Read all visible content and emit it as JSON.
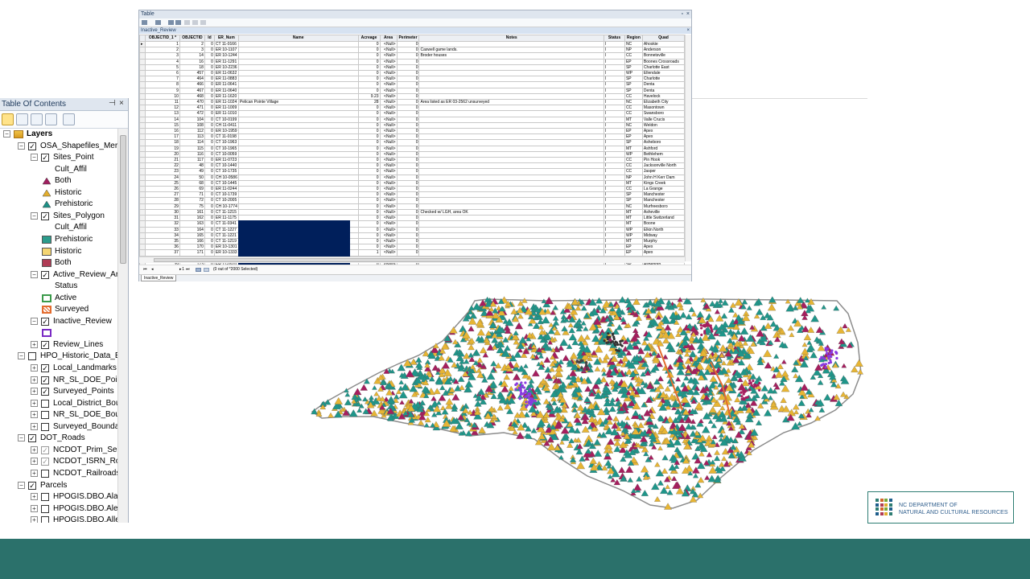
{
  "toc": {
    "title": "Table Of Contents",
    "pin_glyph": "⊣",
    "close_glyph": "×",
    "items": [
      {
        "label": "Layers",
        "kind": "root",
        "level": 0,
        "expanded": true,
        "checkbox": null
      },
      {
        "label": "OSA_Shapefiles_Mercator",
        "kind": "group",
        "level": 1,
        "expanded": true,
        "checkbox": "checked"
      },
      {
        "label": "Sites_Point",
        "kind": "layer",
        "level": 2,
        "expanded": true,
        "checkbox": "checked"
      },
      {
        "label": "Cult_Affil",
        "kind": "field",
        "level": 3
      },
      {
        "label": "Both",
        "kind": "legend",
        "level": 3,
        "symbol": "triangle",
        "color": "#a01f5f"
      },
      {
        "label": "Historic",
        "kind": "legend",
        "level": 3,
        "symbol": "triangle",
        "color": "#e2ad2d"
      },
      {
        "label": "Prehistoric",
        "kind": "legend",
        "level": 3,
        "symbol": "triangle",
        "color": "#1c8f85"
      },
      {
        "label": "Sites_Polygon",
        "kind": "layer",
        "level": 2,
        "expanded": true,
        "checkbox": "checked"
      },
      {
        "label": "Cult_Affil",
        "kind": "field",
        "level": 3
      },
      {
        "label": "Prehistoric",
        "kind": "legend",
        "level": 3,
        "symbol": "rect",
        "color": "#2b9c8c"
      },
      {
        "label": "Historic",
        "kind": "legend",
        "level": 3,
        "symbol": "rect",
        "color": "#f4d572"
      },
      {
        "label": "Both",
        "kind": "legend",
        "level": 3,
        "symbol": "rect",
        "color": "#b03c55"
      },
      {
        "label": "Active_Review_Areas",
        "kind": "layer",
        "level": 2,
        "expanded": true,
        "checkbox": "checked"
      },
      {
        "label": "Status",
        "kind": "field",
        "level": 3
      },
      {
        "label": "Active",
        "kind": "legend",
        "level": 3,
        "symbol": "outline",
        "color": "#3a9a4a"
      },
      {
        "label": "Surveyed",
        "kind": "legend",
        "level": 3,
        "symbol": "hatch",
        "color": "#e36c2f"
      },
      {
        "label": "Inactive_Review",
        "kind": "layer",
        "level": 2,
        "expanded": true,
        "checkbox": "checked"
      },
      {
        "label": "",
        "kind": "legend",
        "level": 3,
        "symbol": "outline",
        "color": "#7a2ac4"
      },
      {
        "label": "Review_Lines",
        "kind": "layer",
        "level": 2,
        "expanded": false,
        "checkbox": "checked"
      },
      {
        "label": "HPO_Historic_Data_EDIT",
        "kind": "group",
        "level": 1,
        "expanded": true,
        "checkbox": "unchecked"
      },
      {
        "label": "Local_Landmarks",
        "kind": "layer",
        "level": 2,
        "expanded": false,
        "checkbox": "checked"
      },
      {
        "label": "NR_SL_DOE_Points",
        "kind": "layer",
        "level": 2,
        "expanded": false,
        "checkbox": "checked"
      },
      {
        "label": "Surveyed_Points",
        "kind": "layer",
        "level": 2,
        "expanded": false,
        "checkbox": "checked"
      },
      {
        "label": "Local_District_Boundaries",
        "kind": "layer",
        "level": 2,
        "expanded": false,
        "checkbox": "unchecked"
      },
      {
        "label": "NR_SL_DOE_Boundaries",
        "kind": "layer",
        "level": 2,
        "expanded": false,
        "checkbox": "unchecked"
      },
      {
        "label": "Surveyed_Boundaries",
        "kind": "layer",
        "level": 2,
        "expanded": false,
        "checkbox": "unchecked"
      },
      {
        "label": "DOT_Roads",
        "kind": "group",
        "level": 1,
        "expanded": true,
        "checkbox": "checked"
      },
      {
        "label": "NCDOT_Prim_Sec_Roads",
        "kind": "layer",
        "level": 2,
        "expanded": false,
        "checkbox": "gray"
      },
      {
        "label": "NCDOT_ISRN_Roads",
        "kind": "layer",
        "level": 2,
        "expanded": false,
        "checkbox": "gray"
      },
      {
        "label": "NCDOT_Railroads",
        "kind": "layer",
        "level": 2,
        "expanded": false,
        "checkbox": "unchecked"
      },
      {
        "label": "Parcels",
        "kind": "group",
        "level": 1,
        "expanded": true,
        "checkbox": "checked"
      },
      {
        "label": "HPOGIS.DBO.Alamance",
        "kind": "layer",
        "level": 2,
        "expanded": false,
        "checkbox": "unchecked"
      },
      {
        "label": "HPOGIS.DBO.Alexander",
        "kind": "layer",
        "level": 2,
        "expanded": false,
        "checkbox": "unchecked"
      },
      {
        "label": "HPOGIS.DBO.Alleghany",
        "kind": "layer",
        "level": 2,
        "expanded": false,
        "checkbox": "unchecked"
      }
    ]
  },
  "table_window": {
    "title": "Table",
    "subtitle": "Inactive_Review",
    "columns": [
      "OBJECTID_1 *",
      "OBJECTID",
      "Id",
      "ER_Num",
      "Name",
      "Acreage",
      "Area",
      "Perimeter",
      "Notes",
      "Status",
      "Region",
      "Quad"
    ],
    "rows": [
      [
        "1",
        "2",
        "0",
        "CT 11-0166",
        "",
        "0",
        "<Null>",
        "0",
        "",
        "I",
        "NC",
        "Ahoskie"
      ],
      [
        "2",
        "3",
        "0",
        "ER 10-1107",
        "",
        "0",
        "<Null>",
        "0",
        "Caswell game lands.",
        "I",
        "NP",
        "Anderson"
      ],
      [
        "3",
        "14",
        "0",
        "ER 10-1244",
        "",
        "0",
        "<Null>",
        "0",
        "Broder houses",
        "I",
        "CC",
        "Bonnetsville"
      ],
      [
        "4",
        "16",
        "0",
        "ER 11-1291",
        "",
        "0",
        "<Null>",
        "0",
        "",
        "I",
        "EP",
        "Boones Crossroads"
      ],
      [
        "5",
        "18",
        "0",
        "ER 10-2236",
        "",
        "0",
        "<Null>",
        "0",
        "",
        "I",
        "SP",
        "Charlotte East"
      ],
      [
        "6",
        "457",
        "0",
        "ER 11-0632",
        "",
        "0",
        "<Null>",
        "0",
        "",
        "I",
        "WP",
        "Ellendale"
      ],
      [
        "7",
        "464",
        "0",
        "ER 11-0883",
        "",
        "0",
        "<Null>",
        "0",
        "",
        "I",
        "SP",
        "Charlotte"
      ],
      [
        "8",
        "466",
        "0",
        "ER 11-0641",
        "",
        "0",
        "<Null>",
        "0",
        "",
        "I",
        "SP",
        "Denta"
      ],
      [
        "9",
        "467",
        "0",
        "ER 11-0640",
        "",
        "0",
        "<Null>",
        "0",
        "",
        "I",
        "SP",
        "Denta"
      ],
      [
        "10",
        "468",
        "0",
        "ER 11-1620",
        "",
        "9.23",
        "<Null>",
        "0",
        "",
        "I",
        "CC",
        "Havelock"
      ],
      [
        "11",
        "470",
        "0",
        "ER 11-1024",
        "Pelican Pointe Village",
        "28",
        "<Null>",
        "0",
        "Area listed as ER 03-2562 unsurveyed",
        "I",
        "NC",
        "Elizabeth City"
      ],
      [
        "12",
        "471",
        "0",
        "ER 11-1009",
        "",
        "0",
        "<Null>",
        "0",
        "",
        "I",
        "CC",
        "Masontown"
      ],
      [
        "13",
        "472",
        "0",
        "ER 11-1010",
        "",
        "0",
        "<Null>",
        "0",
        "",
        "I",
        "CC",
        "Swansboro"
      ],
      [
        "14",
        "104",
        "0",
        "CT 10-0199",
        "",
        "0",
        "<Null>",
        "0",
        "",
        "I",
        "MT",
        "Valle Crucis"
      ],
      [
        "15",
        "108",
        "0",
        "CH 11-0411",
        "",
        "0",
        "<Null>",
        "0",
        "",
        "I",
        "NC",
        "Weldon"
      ],
      [
        "16",
        "112",
        "0",
        "ER 10-1959",
        "",
        "0",
        "<Null>",
        "0",
        "",
        "I",
        "EP",
        "Apex"
      ],
      [
        "17",
        "113",
        "0",
        "CT 11-0198",
        "",
        "0",
        "<Null>",
        "0",
        "",
        "I",
        "EP",
        "Apex"
      ],
      [
        "18",
        "114",
        "0",
        "CT 10-1963",
        "",
        "0",
        "<Null>",
        "0",
        "",
        "I",
        "SP",
        "Asheboro"
      ],
      [
        "19",
        "115",
        "0",
        "CT 10-1965",
        "",
        "0",
        "<Null>",
        "0",
        "",
        "I",
        "MT",
        "Ashford"
      ],
      [
        "20",
        "116",
        "0",
        "CT 10-0059",
        "",
        "0",
        "<Null>",
        "0",
        "",
        "I",
        "WP",
        "Bethlehem"
      ],
      [
        "21",
        "117",
        "0",
        "ER 11-0723",
        "",
        "0",
        "<Null>",
        "0",
        "",
        "I",
        "CC",
        "Pin Hook"
      ],
      [
        "22",
        "48",
        "0",
        "CT 10-1440",
        "",
        "0",
        "<Null>",
        "0",
        "",
        "I",
        "CC",
        "Jacksonville North"
      ],
      [
        "23",
        "49",
        "0",
        "CT 10-1735",
        "",
        "0",
        "<Null>",
        "0",
        "",
        "I",
        "CC",
        "Jasper"
      ],
      [
        "24",
        "50",
        "0",
        "CH 10-0586",
        "",
        "0",
        "<Null>",
        "0",
        "",
        "I",
        "NP",
        "John H Kerr Dam"
      ],
      [
        "25",
        "68",
        "0",
        "CT 10-1445",
        "",
        "0",
        "<Null>",
        "0",
        "",
        "I",
        "MT",
        "Kings Creek"
      ],
      [
        "26",
        "69",
        "0",
        "ER 11-0244",
        "",
        "0",
        "<Null>",
        "0",
        "",
        "I",
        "CC",
        "La Grange"
      ],
      [
        "27",
        "71",
        "0",
        "CT 10-1739",
        "",
        "0",
        "<Null>",
        "0",
        "",
        "I",
        "SP",
        "Manchester"
      ],
      [
        "28",
        "72",
        "0",
        "CT 10-2005",
        "",
        "0",
        "<Null>",
        "0",
        "",
        "I",
        "SP",
        "Manchester"
      ],
      [
        "29",
        "75",
        "0",
        "CH 10-1774",
        "",
        "0",
        "<Null>",
        "0",
        "",
        "I",
        "NC",
        "Murfreesboro"
      ],
      [
        "30",
        "161",
        "0",
        "CT 11-1215",
        "",
        "0",
        "<Null>",
        "0",
        "Checked w/ LGH, area OK",
        "I",
        "MT",
        "Asheville"
      ],
      [
        "31",
        "162",
        "0",
        "ER 11-1175",
        "",
        "0",
        "<Null>",
        "0",
        "",
        "I",
        "MT",
        "Little Switzerland"
      ],
      [
        "32",
        "163",
        "0",
        "CT 11-0341",
        "",
        "0",
        "<Null>",
        "0",
        "",
        "I",
        "MT",
        "Boone"
      ],
      [
        "33",
        "164",
        "0",
        "CT 11-1227",
        "",
        "0",
        "<Null>",
        "0",
        "",
        "I",
        "WP",
        "Elkin North"
      ],
      [
        "34",
        "165",
        "0",
        "CT 11-1221",
        "",
        "0",
        "<Null>",
        "0",
        "",
        "I",
        "WP",
        "Midway"
      ],
      [
        "35",
        "166",
        "0",
        "CT 11-1219",
        "",
        "0",
        "<Null>",
        "0",
        "",
        "I",
        "MT",
        "Murphy"
      ],
      [
        "36",
        "170",
        "0",
        "ER 10-1301",
        "",
        "0",
        "<Null>",
        "0",
        "",
        "I",
        "EP",
        "Apex"
      ],
      [
        "37",
        "171",
        "0",
        "ER 10-1333",
        "",
        "1",
        "<Null>",
        "0",
        "",
        "I",
        "EP",
        "Apex"
      ],
      [
        "38",
        "172",
        "0",
        "ER 10-1931",
        "",
        "0",
        "<Null>",
        "0",
        "",
        "I",
        "EP",
        "Apex"
      ],
      [
        "39",
        "173",
        "0",
        "ER 11-0970",
        "",
        "0",
        "<Null>",
        "0",
        "",
        "I",
        "SP",
        "Asheboro"
      ]
    ],
    "nav": {
      "record": "1",
      "selection_text": "(0 out of *2000 Selected)"
    },
    "tab_label": "Inactive_Review"
  },
  "map": {
    "description_layers": [
      "Sites_Point",
      "Sites_Polygon",
      "Active_Review_Areas",
      "Inactive_Review"
    ],
    "colors": {
      "prehistoric": "#1f968a",
      "historic": "#e7b534",
      "both": "#a61e5e",
      "review": "#8a3ae0",
      "outline": "#8c8c8c",
      "road": "#e36c2f"
    }
  },
  "logo": {
    "line1": "NC DEPARTMENT OF",
    "line2": "NATURAL AND CULTURAL RESOURCES"
  },
  "colors": {
    "footer": "#2b716b",
    "accent": "#001f5b"
  }
}
